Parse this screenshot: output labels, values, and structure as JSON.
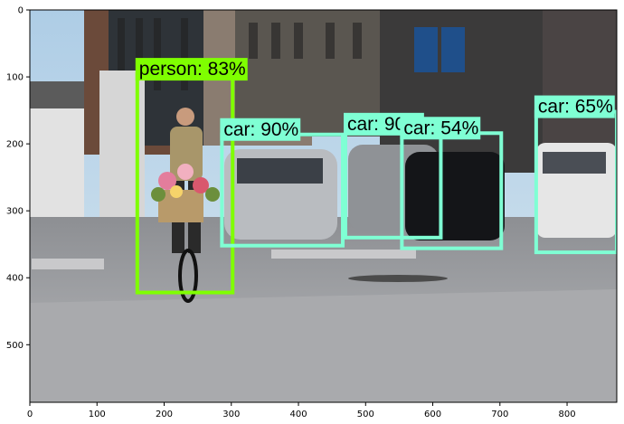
{
  "chart_data": {
    "type": "image-detection-plot",
    "xlim": [
      0,
      874
    ],
    "ylim": [
      586,
      0
    ],
    "xticks": [
      0,
      100,
      200,
      300,
      400,
      500,
      600,
      700,
      800
    ],
    "yticks": [
      0,
      100,
      200,
      300,
      400,
      500
    ],
    "grid": false,
    "scene": "street-photo-cyclist-with-flowers-and-parked-cars",
    "detections": [
      {
        "label": "person: 83%",
        "x0": 160,
        "y0": 96,
        "x1": 302,
        "y1": 422,
        "color": "#7fff00"
      },
      {
        "label": "car: 90%",
        "x0": 286,
        "y0": 186,
        "x1": 466,
        "y1": 352,
        "color": "#7fffd4"
      },
      {
        "label": "car: 90%",
        "x0": 470,
        "y0": 178,
        "x1": 612,
        "y1": 340,
        "color": "#7fffd4"
      },
      {
        "label": "car: 54%",
        "x0": 554,
        "y0": 184,
        "x1": 702,
        "y1": 356,
        "color": "#7fffd4"
      },
      {
        "label": "car: 65%",
        "x0": 754,
        "y0": 152,
        "x1": 874,
        "y1": 362,
        "color": "#7fffd4"
      }
    ]
  }
}
